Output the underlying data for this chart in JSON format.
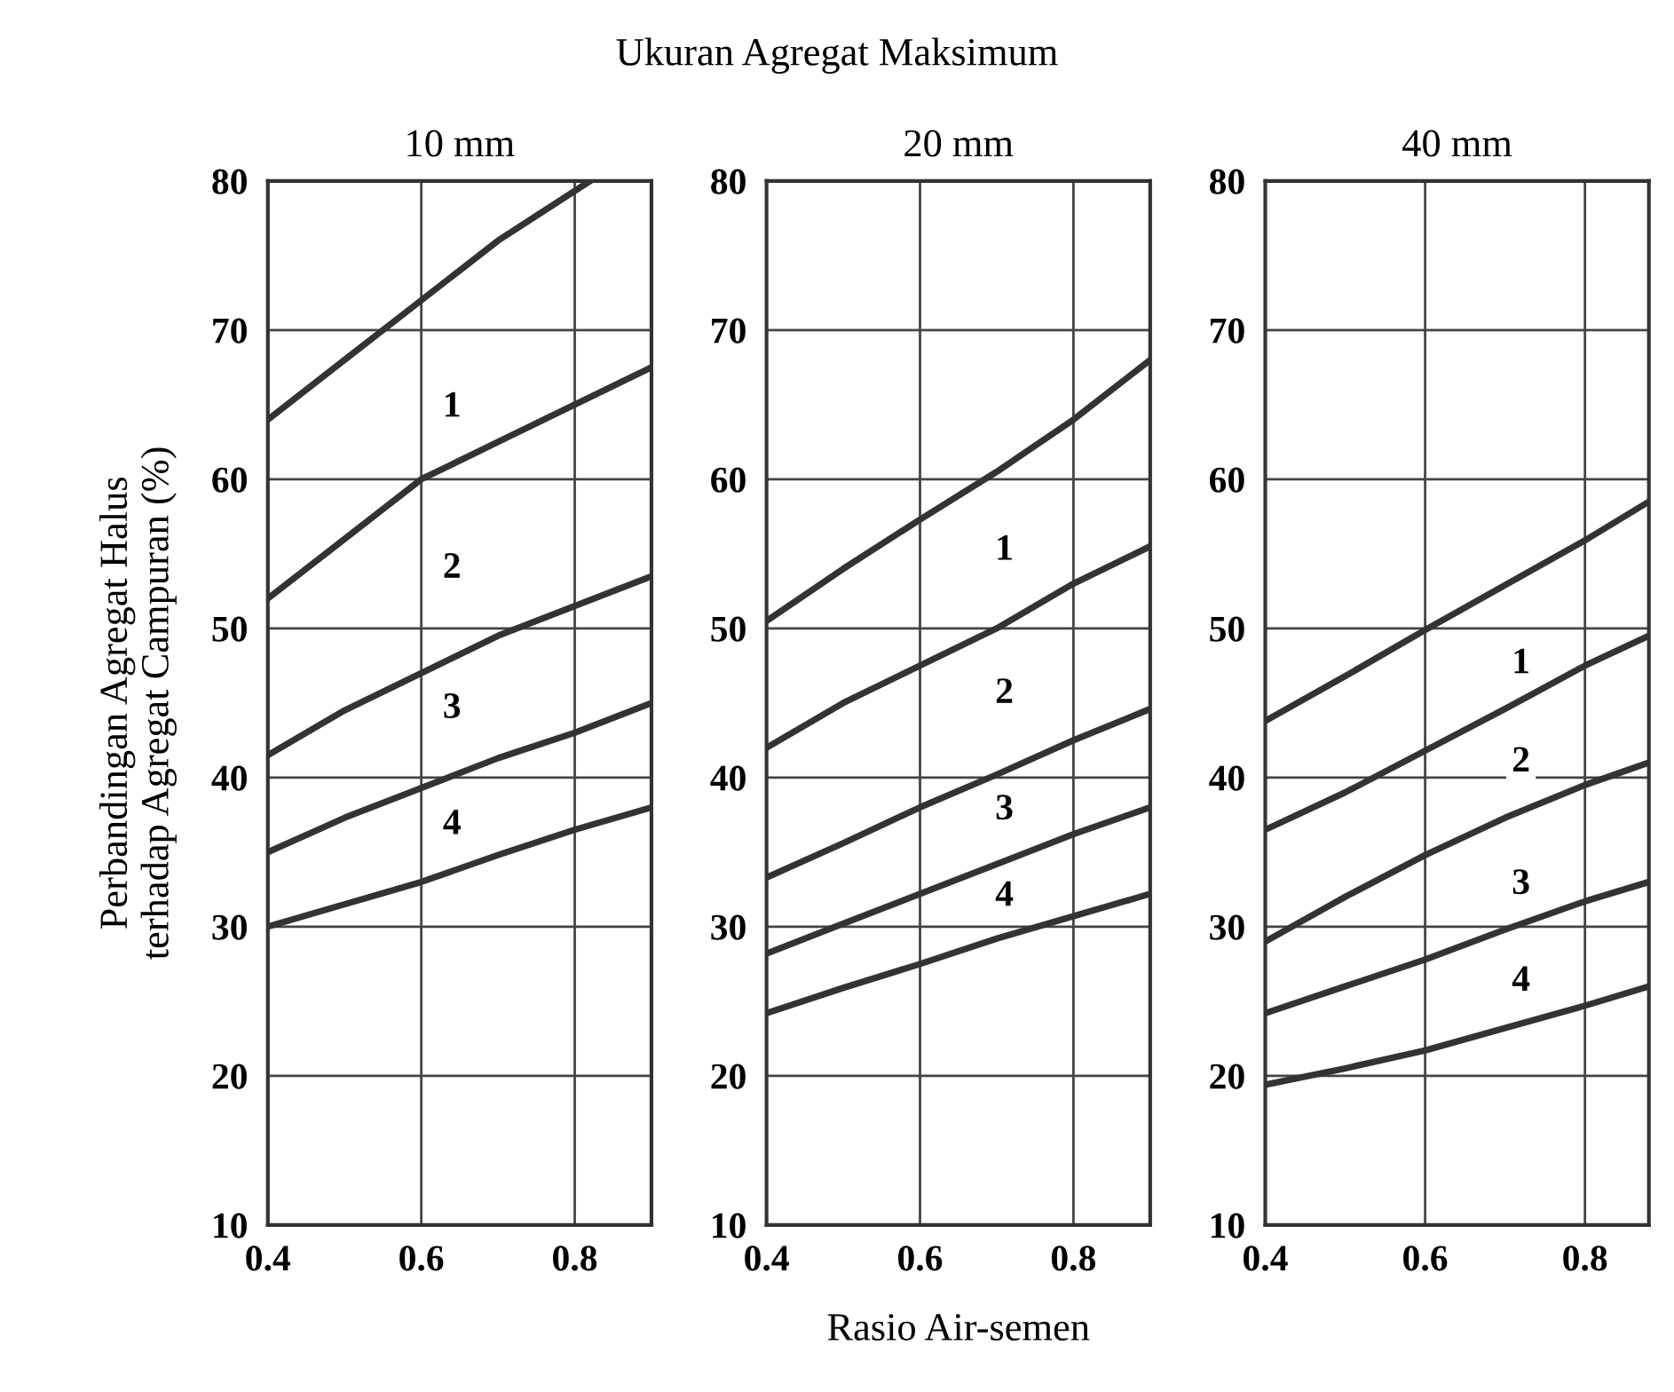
{
  "chart_data": [
    {
      "type": "line",
      "title": "10 mm",
      "ylabel": "Perbandingan Agregat Halus\nterhadap Agregat Campuran (%)",
      "x": [
        0.4,
        0.5,
        0.6,
        0.7,
        0.8,
        0.9
      ],
      "xlim": [
        0.4,
        0.9
      ],
      "ylim": [
        10,
        80
      ],
      "xticks": [
        {
          "value": 0.4,
          "label": "0.4"
        },
        {
          "value": 0.6,
          "label": "0.6"
        },
        {
          "value": 0.8,
          "label": "0.8"
        }
      ],
      "yticks": [
        10,
        20,
        30,
        40,
        50,
        60,
        70,
        80
      ],
      "grid": true,
      "line_style": "solid",
      "series": [
        {
          "color": "#333333",
          "x": [
            0.4,
            0.5,
            0.6,
            0.7,
            0.82
          ],
          "values": [
            64,
            68,
            72,
            76,
            80
          ]
        },
        {
          "color": "#333333",
          "values": [
            52,
            56,
            60,
            62.5,
            65,
            67.5
          ]
        },
        {
          "color": "#333333",
          "values": [
            41.5,
            44.5,
            47,
            49.5,
            51.5,
            53.5
          ]
        },
        {
          "color": "#333333",
          "values": [
            35,
            37.3,
            39.3,
            41.3,
            43,
            45
          ]
        },
        {
          "color": "#333333",
          "values": [
            30,
            31.5,
            33,
            34.8,
            36.5,
            38
          ]
        }
      ],
      "annotations": [
        {
          "text": "1",
          "x": 0.64,
          "y": 64.8
        },
        {
          "text": "2",
          "x": 0.64,
          "y": 54
        },
        {
          "text": "3",
          "x": 0.64,
          "y": 44.6
        },
        {
          "text": "4",
          "x": 0.64,
          "y": 36.8
        }
      ]
    },
    {
      "type": "line",
      "title": "20 mm",
      "xlabel": "Rasio Air-semen",
      "x": [
        0.4,
        0.5,
        0.6,
        0.7,
        0.8,
        0.9
      ],
      "xlim": [
        0.4,
        0.9
      ],
      "ylim": [
        10,
        80
      ],
      "xticks": [
        {
          "value": 0.4,
          "label": "0.4"
        },
        {
          "value": 0.6,
          "label": "0.6"
        },
        {
          "value": 0.8,
          "label": "0.8"
        }
      ],
      "yticks": [
        10,
        20,
        30,
        40,
        50,
        60,
        70,
        80
      ],
      "grid": true,
      "line_style": "solid",
      "series": [
        {
          "color": "#333333",
          "values": [
            50.5,
            54,
            57.3,
            60.5,
            64,
            68
          ]
        },
        {
          "color": "#333333",
          "values": [
            42,
            45,
            47.5,
            50,
            53,
            55.5
          ]
        },
        {
          "color": "#333333",
          "values": [
            33.3,
            35.6,
            38,
            40.2,
            42.5,
            44.6
          ]
        },
        {
          "color": "#333333",
          "values": [
            28.2,
            30.2,
            32.2,
            34.2,
            36.2,
            38
          ]
        },
        {
          "color": "#333333",
          "values": [
            24.2,
            25.9,
            27.5,
            29.2,
            30.7,
            32.2
          ]
        }
      ],
      "annotations": [
        "Ukuran Agregat Maksimum",
        {
          "text": "1",
          "x": 0.71,
          "y": 55.2
        },
        {
          "text": "2",
          "x": 0.71,
          "y": 45.6
        },
        {
          "text": "3",
          "x": 0.71,
          "y": 37.8
        },
        {
          "text": "4",
          "x": 0.71,
          "y": 32
        }
      ]
    },
    {
      "type": "line",
      "title": "40 mm",
      "x": [
        0.4,
        0.5,
        0.6,
        0.7,
        0.8,
        0.88
      ],
      "xlim": [
        0.4,
        0.88
      ],
      "ylim": [
        10,
        80
      ],
      "xticks": [
        {
          "value": 0.4,
          "label": "0.4"
        },
        {
          "value": 0.6,
          "label": "0.6"
        },
        {
          "value": 0.8,
          "label": "0.8"
        }
      ],
      "yticks": [
        10,
        20,
        30,
        40,
        50,
        60,
        70,
        80
      ],
      "grid": true,
      "line_style": "solid",
      "series": [
        {
          "color": "#333333",
          "values": [
            43.8,
            46.8,
            49.9,
            52.9,
            55.9,
            58.5
          ]
        },
        {
          "color": "#333333",
          "values": [
            36.5,
            39,
            41.8,
            44.6,
            47.5,
            49.5
          ]
        },
        {
          "color": "#333333",
          "values": [
            29,
            32,
            34.8,
            37.3,
            39.5,
            41
          ]
        },
        {
          "color": "#333333",
          "values": [
            24.2,
            26,
            27.8,
            29.8,
            31.7,
            33
          ]
        },
        {
          "color": "#333333",
          "values": [
            19.4,
            20.5,
            21.7,
            23.2,
            24.7,
            26
          ]
        }
      ],
      "annotations": [
        {
          "text": "1",
          "x": 0.72,
          "y": 47.6
        },
        {
          "text": "2",
          "x": 0.72,
          "y": 41
        },
        {
          "text": "3",
          "x": 0.72,
          "y": 32.8
        },
        {
          "text": "4",
          "x": 0.72,
          "y": 26.3
        }
      ]
    }
  ]
}
